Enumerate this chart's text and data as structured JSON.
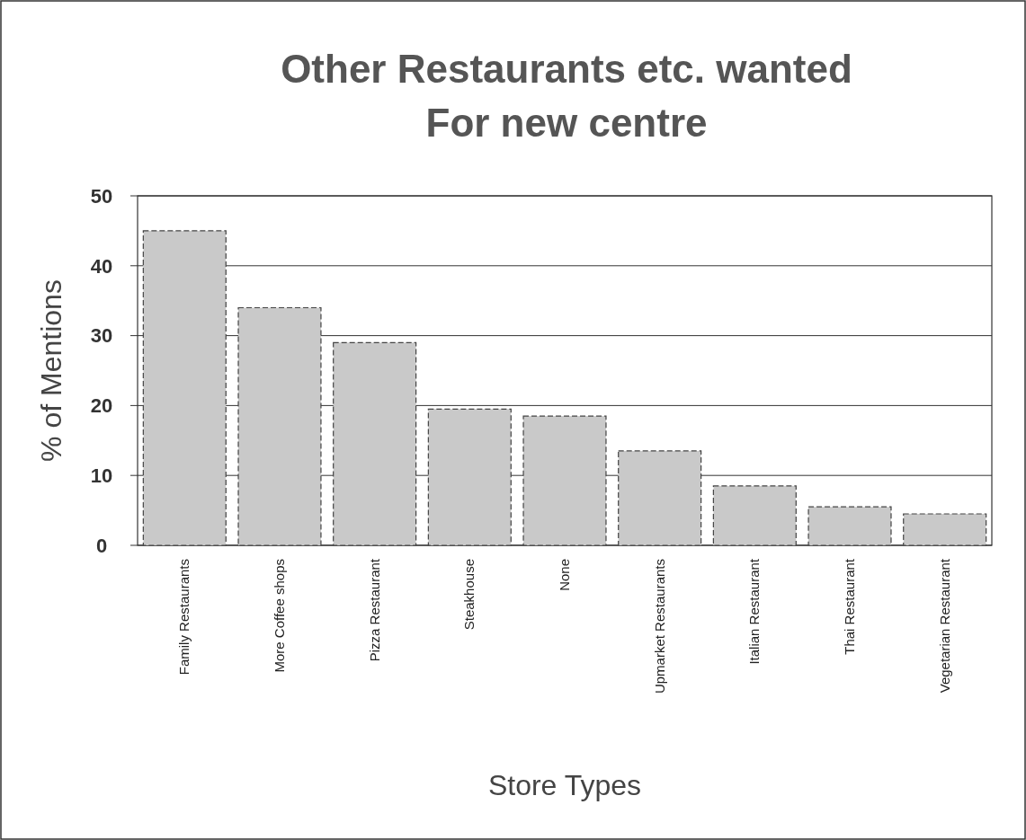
{
  "chart_data": {
    "type": "bar",
    "title": "Other Restaurants etc. wanted\nFor new centre",
    "xlabel": "Store Types",
    "ylabel": "% of Mentions",
    "categories": [
      "Family Restaurants",
      "More Coffee shops",
      "Pizza Restaurant",
      "Steakhouse",
      "None",
      "Upmarket Restaurants",
      "Italian Restaurant",
      "Thai Restaurant",
      "Vegetarian Restaurant"
    ],
    "values": [
      45,
      34,
      29,
      19.5,
      18.5,
      13.5,
      8.5,
      5.5,
      4.5
    ],
    "color": "#c9c9c9",
    "ylim": [
      0,
      50
    ],
    "yticks": [
      0,
      10,
      20,
      30,
      40,
      50
    ],
    "grid": "y"
  }
}
